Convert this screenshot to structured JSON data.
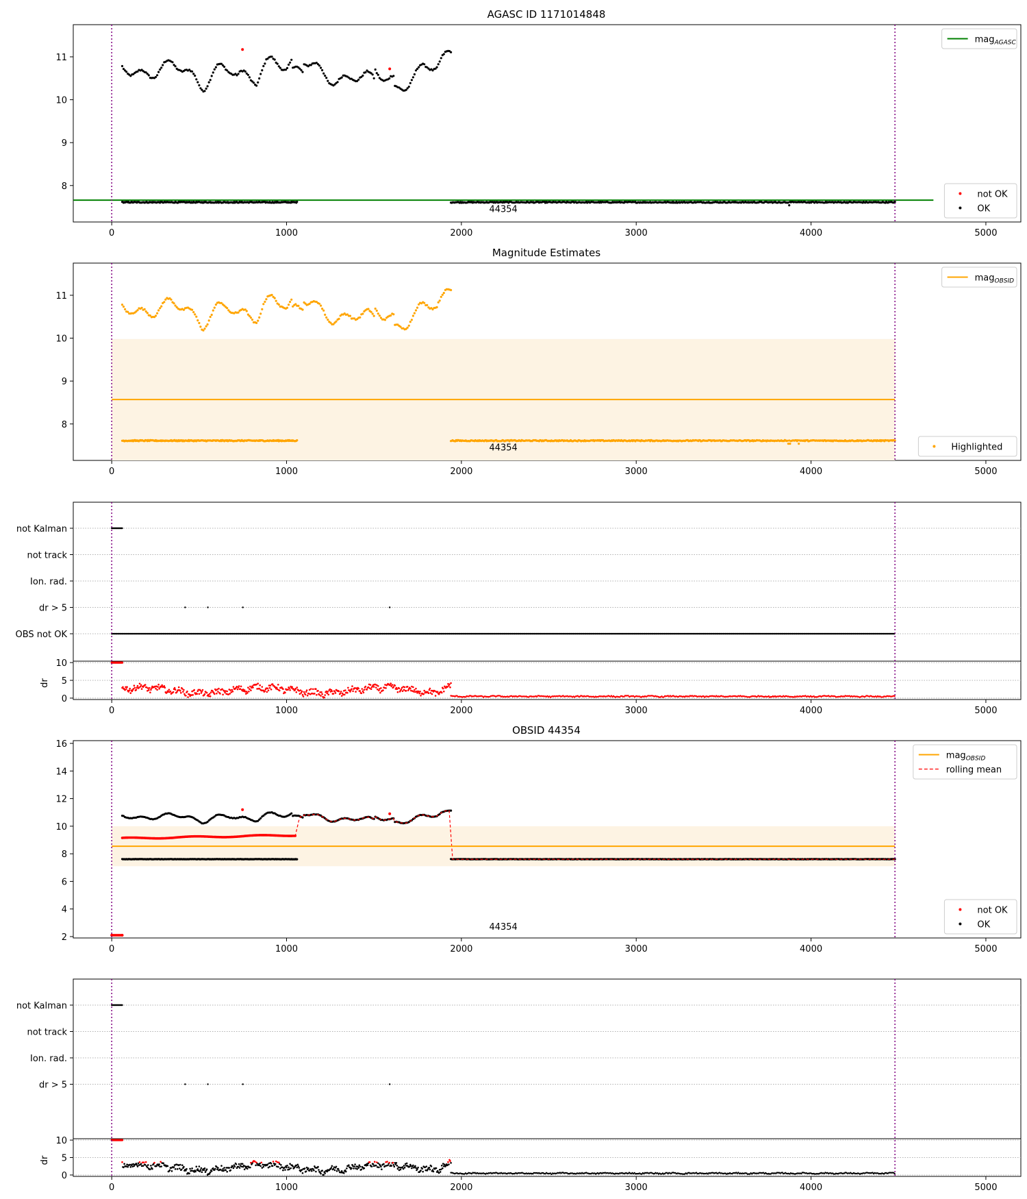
{
  "chart_data": [
    {
      "id": "p1",
      "type": "scatter",
      "title": "AGASC ID 1171014848",
      "xlim": [
        -220,
        5200
      ],
      "ylim": [
        7.15,
        11.75
      ],
      "x_ticks": [
        0,
        1000,
        2000,
        3000,
        4000,
        5000
      ],
      "y_ticks": [
        8,
        9,
        10,
        11
      ],
      "hline": {
        "label": "mag_AGASC",
        "y": 7.66,
        "x_range": [
          -220,
          4700
        ],
        "color": "#008000"
      },
      "vlines": [
        0,
        4480
      ],
      "annotation": {
        "text": "44354",
        "x": 2240,
        "y": 7.38
      },
      "legends": [
        {
          "position": "top-right",
          "entries": [
            {
              "label": "mag",
              "sub": "AGASC",
              "style": "line",
              "color": "#008000"
            }
          ]
        },
        {
          "position": "bottom-right",
          "entries": [
            {
              "label": "not OK",
              "style": "dot",
              "color": "#ff0000"
            },
            {
              "label": "OK",
              "style": "dot",
              "color": "#000000"
            }
          ]
        }
      ],
      "series": [
        {
          "name": "OK",
          "color": "#000000",
          "kind": "mag_pair"
        },
        {
          "name": "not OK",
          "color": "#ff0000",
          "points": [
            [
              748,
              11.17
            ],
            [
              1590,
              10.72
            ]
          ]
        }
      ]
    },
    {
      "id": "p2",
      "type": "scatter",
      "title": "Magnitude Estimates",
      "xlim": [
        -220,
        5200
      ],
      "ylim": [
        7.15,
        11.75
      ],
      "x_ticks": [
        0,
        1000,
        2000,
        3000,
        4000,
        5000
      ],
      "y_ticks": [
        8,
        9,
        10,
        11
      ],
      "hline": {
        "label": "mag_OBSID",
        "y": 8.57,
        "x_range": [
          0,
          4480
        ],
        "color": "#ffa500"
      },
      "band": {
        "x": [
          0,
          4480
        ],
        "y": [
          7.15,
          9.98
        ],
        "color": "#fdf3e3"
      },
      "vlines": [
        0,
        4480
      ],
      "annotation": {
        "text": "44354",
        "x": 2240,
        "y": 7.38
      },
      "legends": [
        {
          "position": "top-right",
          "entries": [
            {
              "label": "mag",
              "sub": "OBSID",
              "style": "line",
              "color": "#ffa500"
            }
          ]
        },
        {
          "position": "bottom-right",
          "entries": [
            {
              "label": "Highlighted",
              "style": "dot",
              "color": "#ffa500"
            }
          ]
        }
      ],
      "series": [
        {
          "name": "Highlighted",
          "color": "#ffa500",
          "kind": "mag_pair"
        }
      ]
    },
    {
      "id": "p3",
      "type": "scatter",
      "title": "",
      "xlim": [
        -220,
        5200
      ],
      "categories": [
        "not Kalman",
        "not track",
        "Ion. rad.",
        "dr > 5",
        "OBS not OK"
      ],
      "flags": {
        "not Kalman": [
          [
            0,
            60
          ]
        ],
        "dr > 5": [
          420,
          550,
          750,
          1590
        ],
        "OBS not OK": [
          [
            0,
            4480
          ]
        ]
      },
      "vlines": [
        0,
        4480
      ],
      "dr": {
        "ylabel": "dr",
        "ylim": [
          -0.4,
          10.4
        ],
        "y_ticks": [
          0,
          5,
          10
        ],
        "color": "#ff0000",
        "early_band": [
          0,
          60
        ]
      }
    },
    {
      "id": "p4",
      "type": "scatter",
      "title": "OBSID 44354",
      "xlim": [
        -220,
        5200
      ],
      "ylim": [
        1.9,
        16.2
      ],
      "x_ticks": [
        0,
        1000,
        2000,
        3000,
        4000,
        5000
      ],
      "y_ticks": [
        2,
        4,
        6,
        8,
        10,
        12,
        14,
        16
      ],
      "hline": {
        "label": "mag_OBSID",
        "y": 8.55,
        "x_range": [
          0,
          4480
        ],
        "color": "#ffa500"
      },
      "band": {
        "x": [
          0,
          4480
        ],
        "y": [
          7.1,
          10.0
        ],
        "color": "#fdf3e3"
      },
      "vlines": [
        0,
        4480
      ],
      "annotation": {
        "text": "44354",
        "x": 2240,
        "y": 2.5
      },
      "legends": [
        {
          "position": "top-right",
          "entries": [
            {
              "label": "mag",
              "sub": "OBSID",
              "style": "line",
              "color": "#ffa500"
            },
            {
              "label": "rolling mean",
              "style": "dash",
              "color": "#ff0000"
            }
          ]
        },
        {
          "position": "bottom-right",
          "entries": [
            {
              "label": "not OK",
              "style": "dot",
              "color": "#ff0000"
            },
            {
              "label": "OK",
              "style": "dot",
              "color": "#000000"
            }
          ]
        }
      ],
      "series": [
        {
          "name": "OK",
          "color": "#000000",
          "kind": "mag_pair"
        },
        {
          "name": "not OK",
          "color": "#ff0000",
          "points": [
            [
              0,
              2.1
            ],
            [
              60,
              2.1
            ],
            [
              748,
              11.2
            ],
            [
              1590,
              10.9
            ]
          ]
        },
        {
          "name": "rolling mean",
          "color": "#ff0000",
          "kind": "rolling"
        }
      ]
    },
    {
      "id": "p5",
      "type": "scatter",
      "title": "",
      "xlim": [
        -220,
        5200
      ],
      "categories": [
        "not Kalman",
        "not track",
        "Ion. rad.",
        "dr > 5"
      ],
      "flags": {
        "not Kalman": [
          [
            0,
            60
          ]
        ],
        "dr > 5": [
          420,
          550,
          750,
          1590
        ]
      },
      "vlines": [
        0,
        4480
      ],
      "dr": {
        "ylabel": "dr",
        "ylim": [
          -0.4,
          10.4
        ],
        "y_ticks": [
          0,
          5,
          10
        ],
        "color": "#000000",
        "red_above": 3.5,
        "early_band": [
          0,
          60
        ]
      }
    }
  ]
}
